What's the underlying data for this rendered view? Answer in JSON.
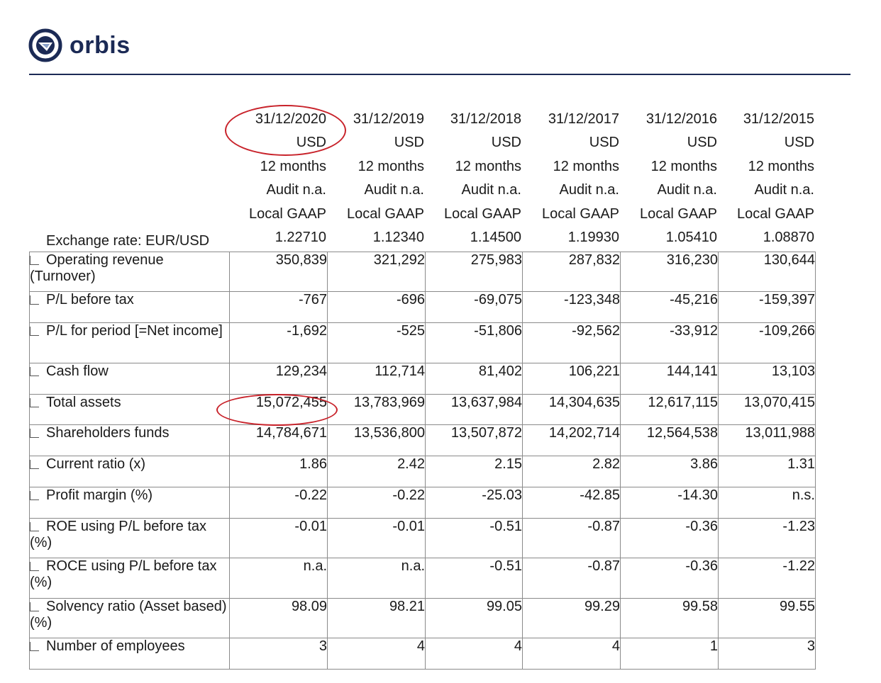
{
  "brand": {
    "name": "orbis",
    "color": "#1b2a55",
    "icon": "orbis-logo-icon"
  },
  "header": {
    "columns": [
      {
        "date": "31/12/2020",
        "currency": "USD",
        "period": "12 months",
        "audit": "Audit n.a.",
        "accounting": "Local GAAP",
        "rate": "1.22710"
      },
      {
        "date": "31/12/2019",
        "currency": "USD",
        "period": "12 months",
        "audit": "Audit n.a.",
        "accounting": "Local GAAP",
        "rate": "1.12340"
      },
      {
        "date": "31/12/2018",
        "currency": "USD",
        "period": "12 months",
        "audit": "Audit n.a.",
        "accounting": "Local GAAP",
        "rate": "1.14500"
      },
      {
        "date": "31/12/2017",
        "currency": "USD",
        "period": "12 months",
        "audit": "Audit n.a.",
        "accounting": "Local GAAP",
        "rate": "1.19930"
      },
      {
        "date": "31/12/2016",
        "currency": "USD",
        "period": "12 months",
        "audit": "Audit n.a.",
        "accounting": "Local GAAP",
        "rate": "1.05410"
      },
      {
        "date": "31/12/2015",
        "currency": "USD",
        "period": "12 months",
        "audit": "Audit n.a.",
        "accounting": "Local GAAP",
        "rate": "1.08870"
      }
    ],
    "exchange_rate_label": "Exchange rate: EUR/USD"
  },
  "rows": [
    {
      "label": "Operating revenue (Turnover)",
      "values": [
        "350,839",
        "321,292",
        "275,983",
        "287,832",
        "316,230",
        "130,644"
      ]
    },
    {
      "label": "P/L before tax",
      "values": [
        "-767",
        "-696",
        "-69,075",
        "-123,348",
        "-45,216",
        "-159,397"
      ]
    },
    {
      "label": "P/L for period [=Net income]",
      "values": [
        "-1,692",
        "-525",
        "-51,806",
        "-92,562",
        "-33,912",
        "-109,266"
      ]
    },
    {
      "label": "Cash flow",
      "values": [
        "129,234",
        "112,714",
        "81,402",
        "106,221",
        "144,141",
        "13,103"
      ]
    },
    {
      "label": "Total assets",
      "values": [
        "15,072,455",
        "13,783,969",
        "13,637,984",
        "14,304,635",
        "12,617,115",
        "13,070,415"
      ]
    },
    {
      "label": "Shareholders funds",
      "values": [
        "14,784,671",
        "13,536,800",
        "13,507,872",
        "14,202,714",
        "12,564,538",
        "13,011,988"
      ]
    },
    {
      "label": "Current ratio (x)",
      "values": [
        "1.86",
        "2.42",
        "2.15",
        "2.82",
        "3.86",
        "1.31"
      ]
    },
    {
      "label": "Profit margin (%)",
      "values": [
        "-0.22",
        "-0.22",
        "-25.03",
        "-42.85",
        "-14.30",
        "n.s."
      ]
    },
    {
      "label": "ROE using P/L before tax (%)",
      "values": [
        "-0.01",
        "-0.01",
        "-0.51",
        "-0.87",
        "-0.36",
        "-1.23"
      ]
    },
    {
      "label": "ROCE using P/L before tax (%)",
      "values": [
        "n.a.",
        "n.a.",
        "-0.51",
        "-0.87",
        "-0.36",
        "-1.22"
      ]
    },
    {
      "label": "Solvency ratio (Asset based) (%)",
      "values": [
        "98.09",
        "98.21",
        "99.05",
        "99.29",
        "99.58",
        "99.55"
      ]
    },
    {
      "label": "Number of employees",
      "values": [
        "3",
        "4",
        "4",
        "4",
        "1",
        "3"
      ]
    }
  ],
  "annotation_color": "#c8222a"
}
